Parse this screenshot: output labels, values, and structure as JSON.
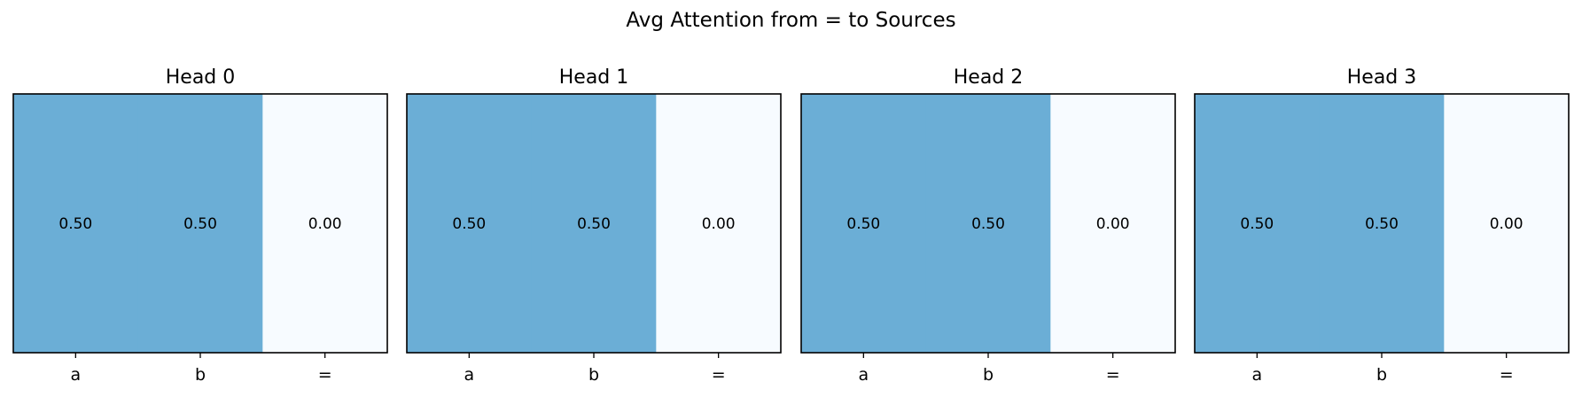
{
  "title": "Avg Attention from = to Sources",
  "colors": {
    "low": "#f7fbff",
    "high": "#6baed6",
    "frame": "#000000"
  },
  "chart_data": [
    {
      "type": "heatmap",
      "title": "Head 0",
      "categories": [
        "a",
        "b",
        "="
      ],
      "values": [
        0.5,
        0.5,
        0.0
      ],
      "labels": [
        "0.50",
        "0.50",
        "0.00"
      ]
    },
    {
      "type": "heatmap",
      "title": "Head 1",
      "categories": [
        "a",
        "b",
        "="
      ],
      "values": [
        0.5,
        0.5,
        0.0
      ],
      "labels": [
        "0.50",
        "0.50",
        "0.00"
      ]
    },
    {
      "type": "heatmap",
      "title": "Head 2",
      "categories": [
        "a",
        "b",
        "="
      ],
      "values": [
        0.5,
        0.5,
        0.0
      ],
      "labels": [
        "0.50",
        "0.50",
        "0.00"
      ]
    },
    {
      "type": "heatmap",
      "title": "Head 3",
      "categories": [
        "a",
        "b",
        "="
      ],
      "values": [
        0.5,
        0.5,
        0.0
      ],
      "labels": [
        "0.50",
        "0.50",
        "0.00"
      ]
    }
  ]
}
